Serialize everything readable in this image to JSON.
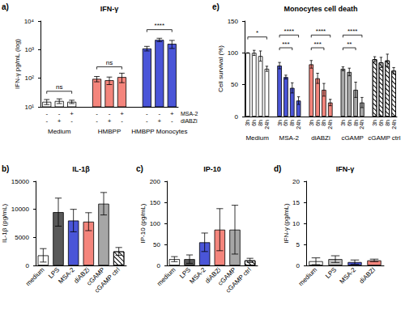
{
  "chart_data": [
    {
      "panel": "a)",
      "type": "bar",
      "title": "IFN-γ",
      "y_label": "IFN-γ pg/mL (log)",
      "log": "y",
      "grid": false,
      "ylim": [
        10,
        10000
      ],
      "yticks": [
        {
          "value": 10,
          "label": "10¹"
        },
        {
          "value": 100,
          "label": "10²"
        },
        {
          "value": 1000,
          "label": "10³"
        },
        {
          "value": 10000,
          "label": "10⁴"
        }
      ],
      "conditions": [
        {
          "name": "MSA-2",
          "marks": [
            "-",
            "-",
            "+"
          ]
        },
        {
          "name": "diABZi",
          "marks": [
            "-",
            "+",
            "-"
          ]
        }
      ],
      "groups": [
        {
          "name": "Medium",
          "color": "#ffffff",
          "values": [
            15,
            16,
            15
          ],
          "errors": [
            3,
            3,
            2
          ]
        },
        {
          "name": "HMBPP",
          "color": "#f4857c",
          "values": [
            95,
            85,
            110
          ],
          "errors": [
            20,
            25,
            40
          ]
        },
        {
          "name": "HMBPP Monocytes",
          "color": "#4a55d8",
          "values": [
            1100,
            2200,
            1600
          ],
          "errors": [
            200,
            300,
            500
          ]
        }
      ],
      "annotations": [
        {
          "text": "ns",
          "group": 0,
          "from": 0,
          "to": 2,
          "y": 35
        },
        {
          "text": "ns",
          "group": 1,
          "from": 0,
          "to": 2,
          "y": 250
        },
        {
          "text": "****",
          "group": 2,
          "from": 0,
          "to": 2,
          "y": 5000
        }
      ]
    },
    {
      "panel": "b)",
      "type": "bar",
      "title": "IL-1β",
      "y_label": "IL-1β (pg/mL)",
      "grid": false,
      "ylim": [
        0,
        15000
      ],
      "yticks": [
        0,
        5000,
        10000,
        15000
      ],
      "groups": [
        {
          "name": "medium",
          "color": "#ffffff",
          "values": [
            1800
          ],
          "errors": [
            1200
          ]
        },
        {
          "name": "LPS",
          "color": "#595959",
          "values": [
            9500
          ],
          "errors": [
            2500
          ]
        },
        {
          "name": "MSA-2",
          "color": "#4a55d8",
          "values": [
            8000
          ],
          "errors": [
            2000
          ]
        },
        {
          "name": "diABZi",
          "color": "#f4857c",
          "values": [
            7800
          ],
          "errors": [
            1600
          ]
        },
        {
          "name": "cGAMP",
          "color": "#a6a6a6",
          "values": [
            11000
          ],
          "errors": [
            2000
          ]
        },
        {
          "name": "cGAMP ctrl",
          "color": "#ffffff",
          "line_style": "hatched",
          "values": [
            2500
          ],
          "errors": [
            700
          ]
        }
      ]
    },
    {
      "panel": "c)",
      "type": "bar",
      "title": "IP-10",
      "y_label": "IP-10 (pg/mL)",
      "grid": false,
      "ylim": [
        0,
        200
      ],
      "yticks": [
        0,
        50,
        100,
        150,
        200
      ],
      "groups": [
        {
          "name": "medium",
          "color": "#ffffff",
          "values": [
            15
          ],
          "errors": [
            6
          ]
        },
        {
          "name": "LPS",
          "color": "#595959",
          "values": [
            15
          ],
          "errors": [
            10
          ]
        },
        {
          "name": "MSA-2",
          "color": "#4a55d8",
          "values": [
            55
          ],
          "errors": [
            22
          ]
        },
        {
          "name": "diABZi",
          "color": "#f4857c",
          "values": [
            85
          ],
          "errors": [
            50
          ]
        },
        {
          "name": "cGAMP",
          "color": "#a6a6a6",
          "values": [
            85
          ],
          "errors": [
            58
          ]
        },
        {
          "name": "cGAMP ctrl",
          "color": "#ffffff",
          "line_style": "hatched",
          "values": [
            12
          ],
          "errors": [
            5
          ]
        }
      ]
    },
    {
      "panel": "d)",
      "type": "bar",
      "title": "IFN-γ",
      "y_label": "IFN-γ (pg/mL)",
      "grid": false,
      "ylim": [
        0,
        20
      ],
      "yticks": [
        0,
        5,
        10,
        15,
        20
      ],
      "groups": [
        {
          "name": "medium",
          "color": "#ffffff",
          "values": [
            1
          ],
          "errors": [
            0.8
          ]
        },
        {
          "name": "LPS",
          "color": "#bfbfbf",
          "values": [
            1.5
          ],
          "errors": [
            0.8
          ]
        },
        {
          "name": "MSA-2",
          "color": "#4a55d8",
          "values": [
            0.8
          ],
          "errors": [
            0.5
          ]
        },
        {
          "name": "diABZI",
          "color": "#f4857c",
          "values": [
            1.2
          ],
          "errors": [
            0.3
          ]
        }
      ]
    },
    {
      "panel": "e)",
      "type": "bar",
      "title": "Monocytes cell death",
      "y_label": "Cell survival (%)",
      "grid": false,
      "ylim": [
        0,
        150
      ],
      "yticks": [
        0,
        50,
        100,
        150
      ],
      "categories": [
        "3h",
        "6h",
        "8h",
        "24h"
      ],
      "groups": [
        {
          "name": "Medium",
          "color": "#ffffff",
          "values": [
            100,
            100,
            95,
            75
          ],
          "errors": [
            0,
            4,
            8,
            4
          ]
        },
        {
          "name": "MSA-2",
          "color": "#4a55d8",
          "values": [
            80,
            62,
            45,
            25
          ],
          "errors": [
            5,
            3,
            8,
            6
          ]
        },
        {
          "name": "diABZi",
          "color": "#f4857c",
          "values": [
            82,
            60,
            42,
            22
          ],
          "errors": [
            6,
            8,
            10,
            5
          ]
        },
        {
          "name": "cGAMP",
          "color": "#a6a6a6",
          "values": [
            75,
            70,
            42,
            22
          ],
          "errors": [
            3,
            6,
            12,
            8
          ]
        },
        {
          "name": "cGAMP ctrl",
          "color": "#ffffff",
          "line_style": "hatched",
          "values": [
            90,
            85,
            88,
            72
          ],
          "errors": [
            4,
            8,
            10,
            5
          ]
        }
      ],
      "annotations": [
        {
          "text": "*",
          "group": 0,
          "from": 0,
          "to": 3,
          "y": 125
        },
        {
          "text": "***",
          "group": 1,
          "from": 0,
          "to": 2,
          "y": 108
        },
        {
          "text": "****",
          "group": 1,
          "from": 0,
          "to": 3,
          "y": 128
        },
        {
          "text": "***",
          "group": 2,
          "from": 0,
          "to": 2,
          "y": 108
        },
        {
          "text": "****",
          "group": 2,
          "from": 0,
          "to": 3,
          "y": 128
        },
        {
          "text": "**",
          "group": 3,
          "from": 0,
          "to": 2,
          "y": 108
        },
        {
          "text": "****",
          "group": 3,
          "from": 0,
          "to": 3,
          "y": 128
        }
      ]
    }
  ]
}
